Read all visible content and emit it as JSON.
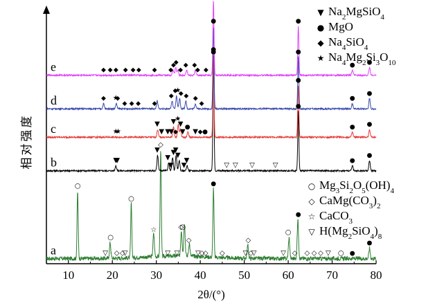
{
  "chart_data": {
    "type": "line",
    "xlabel": "2θ/(°)",
    "ylabel": "相对强度",
    "xlim": [
      5,
      80
    ],
    "xticks": [
      10,
      20,
      30,
      40,
      50,
      60,
      70,
      80
    ],
    "legend_top": [
      {
        "symbol": "▼",
        "formula": [
          [
            "Na",
            ""
          ],
          [
            "2",
            "sub"
          ],
          [
            "MgSiO",
            ""
          ],
          [
            "4",
            "sub"
          ]
        ]
      },
      {
        "symbol": "●",
        "formula": [
          [
            "MgO",
            ""
          ]
        ]
      },
      {
        "symbol": "◆",
        "formula": [
          [
            "Na",
            ""
          ],
          [
            "4",
            "sub"
          ],
          [
            "SiO",
            ""
          ],
          [
            "4",
            "sub"
          ]
        ]
      },
      {
        "symbol": "★",
        "formula": [
          [
            "Na",
            ""
          ],
          [
            "4",
            "sub"
          ],
          [
            "Mg",
            ""
          ],
          [
            "2",
            "sub"
          ],
          [
            "Si",
            ""
          ],
          [
            "3",
            "sub"
          ],
          [
            "O",
            ""
          ],
          [
            "10",
            "sub"
          ]
        ]
      }
    ],
    "legend_bottom": [
      {
        "symbol": "○",
        "formula": [
          [
            "Mg",
            ""
          ],
          [
            "3",
            "sub"
          ],
          [
            "Si",
            ""
          ],
          [
            "2",
            "sub"
          ],
          [
            "O",
            ""
          ],
          [
            "5",
            "sub"
          ],
          [
            "(OH)",
            ""
          ],
          [
            "4",
            "sub"
          ]
        ]
      },
      {
        "symbol": "◇",
        "formula": [
          [
            "CaMg(CO",
            ""
          ],
          [
            "3",
            "sub"
          ],
          [
            ")",
            ""
          ],
          [
            "2",
            "sub"
          ]
        ]
      },
      {
        "symbol": "☆",
        "formula": [
          [
            "CaCO",
            ""
          ],
          [
            "3",
            "sub"
          ]
        ]
      },
      {
        "symbol": "▽",
        "formula": [
          [
            "H(Mg",
            ""
          ],
          [
            "2",
            "sub"
          ],
          [
            "SiO",
            ""
          ],
          [
            "4",
            "sub"
          ],
          [
            ")",
            ""
          ],
          [
            "8",
            "sub"
          ]
        ]
      }
    ],
    "series": [
      {
        "name": "a",
        "color": "#2e7d32",
        "baseline": 0.02,
        "noise": 0.008,
        "peaks": [
          [
            12.1,
            0.26
          ],
          [
            19.5,
            0.06
          ],
          [
            24.3,
            0.21
          ],
          [
            29.4,
            0.09
          ],
          [
            31.0,
            0.42
          ],
          [
            35.7,
            0.1
          ],
          [
            36.4,
            0.13
          ],
          [
            37.5,
            0.05
          ],
          [
            43.0,
            0.27
          ],
          [
            50.8,
            0.05
          ],
          [
            60.2,
            0.08
          ],
          [
            62.2,
            0.15
          ],
          [
            78.5,
            0.04
          ]
        ],
        "markers": [
          [
            12.1,
            "○"
          ],
          [
            18.4,
            "▽"
          ],
          [
            19.6,
            "○"
          ],
          [
            21.0,
            "◇"
          ],
          [
            22.3,
            "◇"
          ],
          [
            22.9,
            "▽"
          ],
          [
            24.3,
            "○"
          ],
          [
            29.4,
            "☆"
          ],
          [
            31.0,
            "◇"
          ],
          [
            32.6,
            "▽"
          ],
          [
            34.7,
            "▽"
          ],
          [
            35.6,
            "◇"
          ],
          [
            36.0,
            "○"
          ],
          [
            37.4,
            "◇"
          ],
          [
            39.5,
            "▽"
          ],
          [
            40.4,
            "◇"
          ],
          [
            41.2,
            "◇"
          ],
          [
            43.0,
            "●"
          ],
          [
            45.0,
            "◇"
          ],
          [
            50.3,
            "▽"
          ],
          [
            50.9,
            "◇"
          ],
          [
            51.5,
            "◇"
          ],
          [
            52.2,
            "▽"
          ],
          [
            58.9,
            "▽"
          ],
          [
            60.0,
            "○"
          ],
          [
            61.5,
            "◇"
          ],
          [
            62.3,
            "●"
          ],
          [
            64.3,
            "◇"
          ],
          [
            65.9,
            "◇"
          ],
          [
            67.4,
            "◇"
          ],
          [
            69.1,
            "▽"
          ],
          [
            72.0,
            "○"
          ],
          [
            74.6,
            "●"
          ],
          [
            78.5,
            "●"
          ]
        ]
      },
      {
        "name": "b",
        "color": "#000000",
        "baseline": 0.36,
        "noise": 0.003,
        "peaks": [
          [
            20.8,
            0.02
          ],
          [
            30.3,
            0.06
          ],
          [
            32.8,
            0.03
          ],
          [
            33.7,
            0.05
          ],
          [
            34.5,
            0.06
          ],
          [
            35.2,
            0.04
          ],
          [
            37.0,
            0.02
          ],
          [
            43.0,
            0.44
          ],
          [
            62.3,
            0.23
          ],
          [
            74.6,
            0.02
          ],
          [
            78.5,
            0.04
          ]
        ],
        "markers": [
          [
            20.8,
            "▼"
          ],
          [
            21.1,
            "▼"
          ],
          [
            30.2,
            "▼"
          ],
          [
            32.6,
            "▼"
          ],
          [
            33.3,
            "▼"
          ],
          [
            33.9,
            "▼"
          ],
          [
            34.4,
            "▼"
          ],
          [
            34.9,
            "▼"
          ],
          [
            36.3,
            "▼"
          ],
          [
            36.9,
            "▼"
          ],
          [
            43.0,
            "●"
          ],
          [
            46.0,
            "▽"
          ],
          [
            48.0,
            "▽"
          ],
          [
            51.8,
            "▽"
          ],
          [
            57.1,
            "▽"
          ],
          [
            62.3,
            "●"
          ],
          [
            74.6,
            "●"
          ],
          [
            78.5,
            "●"
          ]
        ]
      },
      {
        "name": "c",
        "color": "#e53935",
        "baseline": 0.49,
        "noise": 0.003,
        "peaks": [
          [
            30.3,
            0.03
          ],
          [
            33.9,
            0.04
          ],
          [
            35.0,
            0.05
          ],
          [
            35.5,
            0.03
          ],
          [
            37.2,
            0.02
          ],
          [
            43.0,
            0.32
          ],
          [
            62.3,
            0.2
          ],
          [
            74.6,
            0.02
          ],
          [
            78.5,
            0.03
          ]
        ],
        "markers": [
          [
            20.8,
            "★"
          ],
          [
            21.3,
            "★"
          ],
          [
            30.2,
            "▼"
          ],
          [
            31.2,
            "▼"
          ],
          [
            32.6,
            "▼"
          ],
          [
            33.4,
            "▼"
          ],
          [
            33.9,
            "▼"
          ],
          [
            34.4,
            "◆"
          ],
          [
            34.9,
            "★"
          ],
          [
            35.5,
            "▼"
          ],
          [
            36.0,
            "▼"
          ],
          [
            37.1,
            "●"
          ],
          [
            38.9,
            "▼"
          ],
          [
            40.0,
            "◆"
          ],
          [
            41.1,
            "●"
          ],
          [
            43.0,
            "●"
          ],
          [
            62.3,
            "●"
          ],
          [
            74.6,
            "●"
          ],
          [
            78.5,
            "●"
          ]
        ]
      },
      {
        "name": "d",
        "color": "#3949ab",
        "baseline": 0.6,
        "noise": 0.003,
        "peaks": [
          [
            18.0,
            0.02
          ],
          [
            20.9,
            0.02
          ],
          [
            30.2,
            0.03
          ],
          [
            33.6,
            0.03
          ],
          [
            34.6,
            0.05
          ],
          [
            35.3,
            0.04
          ],
          [
            36.7,
            0.03
          ],
          [
            38.9,
            0.02
          ],
          [
            43.0,
            0.32
          ],
          [
            62.3,
            0.2
          ],
          [
            74.6,
            0.02
          ],
          [
            78.5,
            0.04
          ]
        ],
        "markers": [
          [
            18.0,
            "◆"
          ],
          [
            20.8,
            "★"
          ],
          [
            21.2,
            "◆"
          ],
          [
            22.8,
            "◆"
          ],
          [
            24.4,
            "◆"
          ],
          [
            25.9,
            "◆"
          ],
          [
            29.6,
            "◆"
          ],
          [
            33.4,
            "◆"
          ],
          [
            34.3,
            "◆"
          ],
          [
            34.9,
            "★"
          ],
          [
            35.6,
            "◆"
          ],
          [
            36.8,
            "◆"
          ],
          [
            38.9,
            "◆"
          ],
          [
            40.3,
            "◆"
          ],
          [
            43.0,
            "●"
          ],
          [
            62.3,
            "●"
          ],
          [
            74.6,
            "●"
          ],
          [
            78.5,
            "●"
          ]
        ]
      },
      {
        "name": "e",
        "color": "#e040fb",
        "baseline": 0.73,
        "noise": 0.003,
        "peaks": [
          [
            33.8,
            0.02
          ],
          [
            34.4,
            0.03
          ],
          [
            34.9,
            0.02
          ],
          [
            36.9,
            0.02
          ],
          [
            38.9,
            0.02
          ],
          [
            43.0,
            0.29
          ],
          [
            62.3,
            0.19
          ],
          [
            74.6,
            0.02
          ],
          [
            78.5,
            0.03
          ]
        ],
        "markers": [
          [
            18.0,
            "◆"
          ],
          [
            19.5,
            "◆"
          ],
          [
            20.8,
            "◆"
          ],
          [
            23.0,
            "◆"
          ],
          [
            24.7,
            "◆"
          ],
          [
            26.0,
            "◆"
          ],
          [
            29.6,
            "◆"
          ],
          [
            33.3,
            "◆"
          ],
          [
            33.9,
            "◆"
          ],
          [
            34.5,
            "◆"
          ],
          [
            35.5,
            "◆"
          ],
          [
            36.7,
            "◆"
          ],
          [
            38.7,
            "◆"
          ],
          [
            39.4,
            "◆"
          ],
          [
            41.3,
            "◆"
          ],
          [
            43.0,
            "●"
          ],
          [
            62.3,
            "●"
          ],
          [
            74.6,
            "●"
          ],
          [
            78.5,
            "●"
          ]
        ]
      }
    ]
  }
}
